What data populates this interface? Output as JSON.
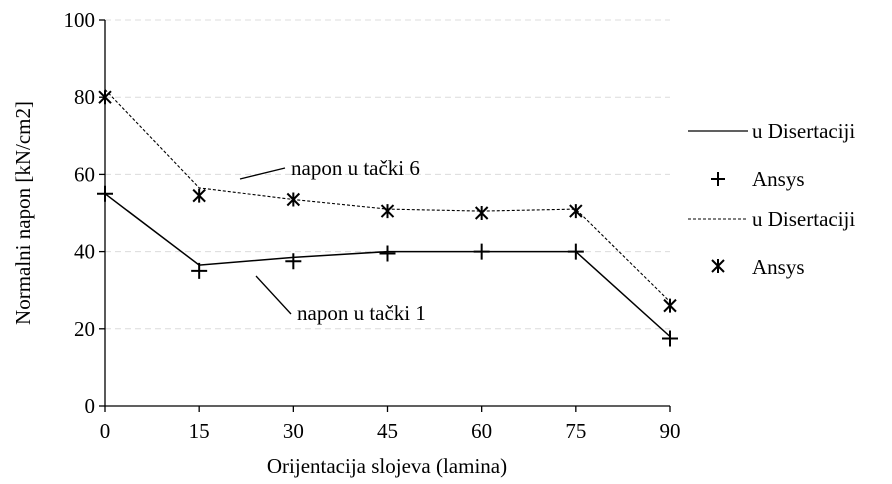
{
  "chart_data": {
    "type": "line",
    "title": "",
    "xlabel": "Orijentacija slojeva (lamina)",
    "ylabel": "Normalni napon [kN/cm2]",
    "x": [
      0,
      15,
      30,
      45,
      60,
      75,
      90
    ],
    "xlim": [
      0,
      90
    ],
    "ylim": [
      0,
      100
    ],
    "x_ticks": [
      "0",
      "15",
      "30",
      "45",
      "60",
      "75",
      "90"
    ],
    "y_ticks": [
      "0",
      "20",
      "40",
      "60",
      "80",
      "100"
    ],
    "grid": "horizontal dashed, light gray",
    "legend_position": "right",
    "series": [
      {
        "name": "u Disertaciji",
        "group": "napon u tački 1",
        "style": "solid",
        "marker": "none",
        "values": [
          55,
          36.5,
          38.5,
          40,
          40,
          40,
          18
        ]
      },
      {
        "name": "Ansys",
        "group": "napon u tački 1",
        "style": "none",
        "marker": "plus",
        "values": [
          55,
          35,
          37.5,
          39.5,
          40,
          40,
          17.5
        ]
      },
      {
        "name": "u Disertaciji",
        "group": "napon u tački 6",
        "style": "dashed",
        "marker": "none",
        "values": [
          82,
          56.5,
          53.5,
          51,
          50.5,
          51,
          27
        ]
      },
      {
        "name": "Ansys",
        "group": "napon u tački 6",
        "style": "none",
        "marker": "star",
        "values": [
          80,
          54.5,
          53.5,
          50.5,
          50,
          50.5,
          26
        ]
      }
    ],
    "annotations": [
      {
        "text": "napon u tački 6",
        "target_series": 2
      },
      {
        "text": "napon u tački 1",
        "target_series": 0
      }
    ]
  }
}
